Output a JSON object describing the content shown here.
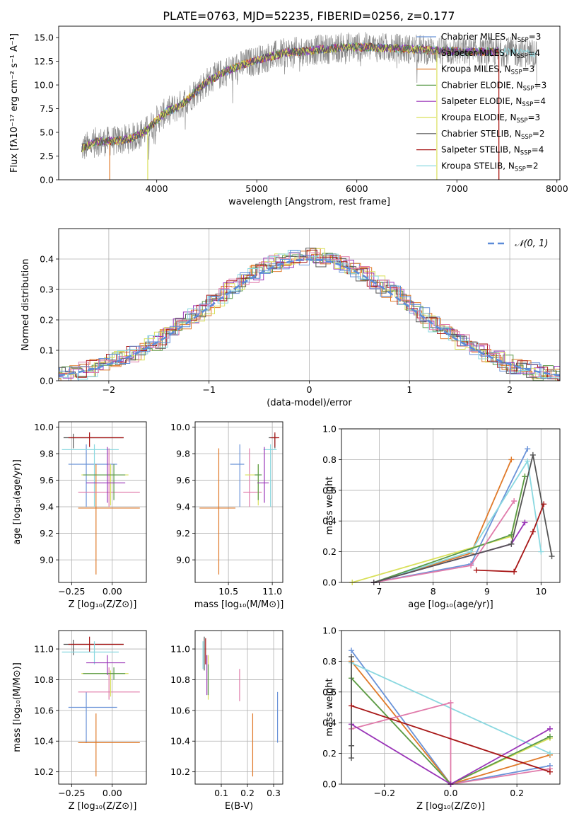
{
  "figure_title": "PLATE=0763, MJD=52235, FIBERID=0256, z=0.177",
  "colors": {
    "series": [
      "#6a93d8",
      "#e07a2a",
      "#e07a2a",
      "#5a9a4a",
      "#9a35b8",
      "#d9e05a",
      "#555555",
      "#a81818",
      "#8ad8e0"
    ],
    "grid": "#b0b0b0"
  },
  "chart_data": [
    {
      "id": "spectrum",
      "type": "line",
      "xlabel": "wavelength [Angstrom, rest frame]",
      "ylabel": "Flux [fλ10⁻¹⁷ erg cm⁻² s⁻¹ A⁻¹]",
      "xlim": [
        3020,
        8030
      ],
      "ylim": [
        0,
        16.2
      ],
      "xticks": [
        "4000",
        "5000",
        "6000",
        "7000",
        "8000"
      ],
      "yticks": [
        "0.0",
        "2.5",
        "5.0",
        "7.5",
        "10.0",
        "12.5",
        "15.0"
      ],
      "grid": false,
      "legend_placement": "upper-right",
      "series": [
        {
          "name": "Chabrier MILES, N_SSP=3",
          "color": "#6a93d8"
        },
        {
          "name": "Salpeter MILES, N_SSP=4",
          "color": "#8a8a8a"
        },
        {
          "name": "Kroupa MILES, N_SSP=3",
          "color": "#e07a2a"
        },
        {
          "name": "Chabrier ELODIE, N_SSP=3",
          "color": "#5a9a4a"
        },
        {
          "name": "Salpeter ELODIE, N_SSP=4",
          "color": "#9a35b8"
        },
        {
          "name": "Kroupa ELODIE, N_SSP=3",
          "color": "#d9e05a"
        },
        {
          "name": "Chabrier STELIB, N_SSP=2",
          "color": "#555555"
        },
        {
          "name": "Salpeter STELIB, N_SSP=4",
          "color": "#a81818"
        },
        {
          "name": "Kroupa STELIB, N_SSP=2",
          "color": "#8ad8e0"
        }
      ],
      "continuum": {
        "x": [
          3250,
          3400,
          3600,
          3750,
          3900,
          4000,
          4100,
          4200,
          4300,
          4400,
          4500,
          4700,
          4900,
          5100,
          5300,
          5500,
          5700,
          5900,
          6100,
          6300,
          6500,
          6700,
          6900,
          7100,
          7300,
          7500,
          7700,
          7800
        ],
        "y": [
          3.3,
          4.0,
          4.1,
          4.4,
          5.2,
          6.3,
          7.2,
          7.6,
          8.4,
          9.4,
          10.3,
          11.5,
          12.3,
          12.9,
          13.4,
          13.6,
          13.8,
          14.0,
          14.0,
          13.9,
          13.8,
          13.7,
          13.6,
          13.5,
          13.5,
          13.5,
          13.4,
          13.3
        ]
      }
    },
    {
      "id": "residuals",
      "type": "line",
      "xlabel": "(data-model)/error",
      "ylabel": "Normed distribution",
      "xlim": [
        -2.5,
        2.5
      ],
      "ylim": [
        0,
        0.5
      ],
      "xticks": [
        "−2",
        "−1",
        "0",
        "1",
        "2"
      ],
      "yticks": [
        "0.0",
        "0.1",
        "0.2",
        "0.3",
        "0.4"
      ],
      "grid": true,
      "legend_placement": "upper-right",
      "reference": {
        "name": "𝒩(0, 1)",
        "mean": 0,
        "sigma": 1,
        "color": "#5b8bd8"
      }
    },
    {
      "id": "age_vs_Z",
      "type": "scatter",
      "xlabel": "Z [log₁₀(Z/Z⊙)]",
      "ylabel": "age  [log₁₀(age/yr)]",
      "xlim": [
        -0.33,
        0.21
      ],
      "ylim": [
        8.83,
        10.04
      ],
      "xticks": [
        "−0.25",
        "0.00"
      ],
      "yticks": [
        "9.0",
        "9.2",
        "9.4",
        "9.6",
        "9.8",
        "10.0"
      ],
      "grid": true,
      "points": [
        {
          "x": -0.24,
          "y": 9.92,
          "xl": -0.3,
          "xh": 0.07,
          "yl": 9.84,
          "yh": 9.95,
          "c": "#555555"
        },
        {
          "x": -0.14,
          "y": 9.92,
          "xl": -0.27,
          "xh": 0.07,
          "yl": 9.85,
          "yh": 9.96,
          "c": "#a81818"
        },
        {
          "x": -0.16,
          "y": 9.72,
          "xl": -0.27,
          "xh": 0.03,
          "yl": 9.4,
          "yh": 9.87,
          "c": "#6a93d8"
        },
        {
          "x": -0.11,
          "y": 9.83,
          "xl": -0.31,
          "xh": 0.04,
          "yl": 9.4,
          "yh": 9.87,
          "c": "#8ad8e0"
        },
        {
          "x": -0.1,
          "y": 9.39,
          "xl": -0.21,
          "xh": 0.17,
          "yl": 8.89,
          "yh": 9.72,
          "c": "#e07a2a"
        },
        {
          "x": -0.02,
          "y": 9.51,
          "xl": -0.21,
          "xh": 0.17,
          "yl": 9.4,
          "yh": 9.84,
          "c": "#e07aaa"
        },
        {
          "x": -0.01,
          "y": 9.64,
          "xl": -0.19,
          "xh": 0.1,
          "yl": 9.41,
          "yh": 9.72,
          "c": "#d9e05a"
        },
        {
          "x": 0.01,
          "y": 9.64,
          "xl": -0.18,
          "xh": 0.08,
          "yl": 9.45,
          "yh": 9.72,
          "c": "#5a9a4a"
        },
        {
          "x": -0.03,
          "y": 9.58,
          "xl": -0.16,
          "xh": 0.08,
          "yl": 9.43,
          "yh": 9.85,
          "c": "#9a35b8"
        }
      ]
    },
    {
      "id": "age_vs_mass",
      "type": "scatter",
      "xlabel": "mass [log₁₀(M/M⊙)]",
      "xlim": [
        10.12,
        11.12
      ],
      "ylim": [
        8.83,
        10.04
      ],
      "xticks": [
        "10.5",
        "11.0"
      ],
      "yticks": [
        "9.0",
        "9.2",
        "9.4",
        "9.6",
        "9.8",
        "10.0"
      ],
      "grid": true,
      "points": [
        {
          "x": 11.03,
          "y": 9.92,
          "xl": 10.96,
          "xh": 11.06,
          "yl": 9.84,
          "yh": 9.95,
          "c": "#555555"
        },
        {
          "x": 11.03,
          "y": 9.92,
          "xl": 10.98,
          "xh": 11.08,
          "yl": 9.85,
          "yh": 9.96,
          "c": "#a81818"
        },
        {
          "x": 10.63,
          "y": 9.72,
          "xl": 10.52,
          "xh": 10.68,
          "yl": 9.4,
          "yh": 9.87,
          "c": "#6a93d8"
        },
        {
          "x": 10.98,
          "y": 9.83,
          "xl": 10.9,
          "xh": 11.05,
          "yl": 9.4,
          "yh": 9.87,
          "c": "#8ad8e0"
        },
        {
          "x": 10.39,
          "y": 9.39,
          "xl": 10.17,
          "xh": 10.58,
          "yl": 8.89,
          "yh": 9.84,
          "c": "#e07a2a"
        },
        {
          "x": 10.74,
          "y": 9.51,
          "xl": 10.67,
          "xh": 10.88,
          "yl": 9.4,
          "yh": 9.84,
          "c": "#e07aaa"
        },
        {
          "x": 10.84,
          "y": 9.64,
          "xl": 10.69,
          "xh": 10.86,
          "yl": 9.41,
          "yh": 9.72,
          "c": "#d9e05a"
        },
        {
          "x": 10.84,
          "y": 9.64,
          "xl": 10.8,
          "xh": 10.88,
          "yl": 9.45,
          "yh": 9.72,
          "c": "#5a9a4a"
        },
        {
          "x": 10.91,
          "y": 9.58,
          "xl": 10.83,
          "xh": 10.96,
          "yl": 9.43,
          "yh": 9.85,
          "c": "#9a35b8"
        }
      ]
    },
    {
      "id": "weight_vs_age",
      "type": "line",
      "xlabel": "age  [log₁₀(age/yr)]",
      "ylabel": "mass weight",
      "xlim": [
        6.3,
        10.35
      ],
      "ylim": [
        0,
        1.0
      ],
      "xticks": [
        "7",
        "8",
        "9",
        "10"
      ],
      "yticks": [
        "0.0",
        "0.2",
        "0.4",
        "0.6",
        "0.8",
        "1.0"
      ],
      "grid": true,
      "series": [
        {
          "c": "#6a93d8",
          "x": [
            6.9,
            8.7,
            9.75
          ],
          "y": [
            0.0,
            0.12,
            0.87
          ]
        },
        {
          "c": "#e07a2a",
          "x": [
            6.9,
            8.7,
            9.45
          ],
          "y": [
            0.0,
            0.19,
            0.8
          ]
        },
        {
          "c": "#8ad8e0",
          "x": [
            6.9,
            8.7,
            9.75,
            10.0
          ],
          "y": [
            0.0,
            0.2,
            0.79,
            0.2
          ]
        },
        {
          "c": "#d9e05a",
          "x": [
            6.5,
            9.45,
            9.7
          ],
          "y": [
            0.0,
            0.3,
            0.69
          ]
        },
        {
          "c": "#5a9a4a",
          "x": [
            6.9,
            9.45,
            9.7
          ],
          "y": [
            0.0,
            0.31,
            0.69
          ]
        },
        {
          "c": "#e07aaa",
          "x": [
            6.9,
            8.7,
            9.5
          ],
          "y": [
            0.0,
            0.11,
            0.53
          ]
        },
        {
          "c": "#9a35b8",
          "x": [
            6.9,
            9.45,
            9.7
          ],
          "y": [
            0.0,
            0.25,
            0.39
          ]
        },
        {
          "c": "#555555",
          "x": [
            6.9,
            9.45,
            9.85,
            10.2
          ],
          "y": [
            0.0,
            0.25,
            0.83,
            0.17
          ]
        },
        {
          "c": "#a81818",
          "x": [
            8.8,
            9.5,
            9.85,
            10.05
          ],
          "y": [
            0.08,
            0.07,
            0.33,
            0.51
          ]
        }
      ]
    },
    {
      "id": "mass_vs_Z",
      "type": "scatter",
      "xlabel": "Z [log₁₀(Z/Z⊙)]",
      "ylabel": "mass [log₁₀(M/M⊙)]",
      "xlim": [
        -0.33,
        0.21
      ],
      "ylim": [
        10.12,
        11.12
      ],
      "xticks": [
        "−0.25",
        "0.00"
      ],
      "yticks": [
        "10.2",
        "10.4",
        "10.6",
        "10.8",
        "11.0"
      ],
      "grid": true,
      "points": [
        {
          "x": -0.24,
          "y": 11.03,
          "xl": -0.3,
          "xh": 0.07,
          "yl": 10.96,
          "yh": 11.06,
          "c": "#555555"
        },
        {
          "x": -0.14,
          "y": 11.03,
          "xl": -0.27,
          "xh": 0.07,
          "yl": 10.98,
          "yh": 11.08,
          "c": "#a81818"
        },
        {
          "x": -0.16,
          "y": 10.62,
          "xl": -0.27,
          "xh": 0.03,
          "yl": 10.39,
          "yh": 10.72,
          "c": "#6a93d8"
        },
        {
          "x": -0.11,
          "y": 10.98,
          "xl": -0.31,
          "xh": 0.04,
          "yl": 10.9,
          "yh": 11.05,
          "c": "#8ad8e0"
        },
        {
          "x": -0.1,
          "y": 10.39,
          "xl": -0.21,
          "xh": 0.17,
          "yl": 10.17,
          "yh": 10.58,
          "c": "#e07a2a"
        },
        {
          "x": -0.02,
          "y": 10.72,
          "xl": -0.21,
          "xh": 0.17,
          "yl": 10.67,
          "yh": 10.88,
          "c": "#e07aaa"
        },
        {
          "x": -0.01,
          "y": 10.84,
          "xl": -0.19,
          "xh": 0.1,
          "yl": 10.69,
          "yh": 10.86,
          "c": "#d9e05a"
        },
        {
          "x": 0.01,
          "y": 10.84,
          "xl": -0.18,
          "xh": 0.08,
          "yl": 10.8,
          "yh": 10.88,
          "c": "#5a9a4a"
        },
        {
          "x": -0.03,
          "y": 10.91,
          "xl": -0.16,
          "xh": 0.08,
          "yl": 10.83,
          "yh": 10.96,
          "c": "#9a35b8"
        }
      ]
    },
    {
      "id": "mass_vs_ebv",
      "type": "scatter",
      "xlabel": "E(B-V)",
      "xlim": [
        0.0,
        0.335
      ],
      "ylim": [
        10.12,
        11.12
      ],
      "xticks": [
        "0.1",
        "0.2",
        "0.3"
      ],
      "yticks": [
        "10.2",
        "10.4",
        "10.6",
        "10.8",
        "11.0"
      ],
      "grid": true,
      "points": [
        {
          "x": 0.035,
          "y": 11.0,
          "yl": 10.86,
          "yh": 11.08,
          "c": "#555555"
        },
        {
          "x": 0.04,
          "y": 11.0,
          "yl": 10.9,
          "yh": 11.07,
          "c": "#a81818"
        },
        {
          "x": 0.03,
          "y": 10.95,
          "yl": 10.87,
          "yh": 11.05,
          "c": "#8ad8e0"
        },
        {
          "x": 0.045,
          "y": 10.85,
          "yl": 10.7,
          "yh": 10.96,
          "c": "#9a35b8"
        },
        {
          "x": 0.05,
          "y": 10.85,
          "yl": 10.67,
          "yh": 10.96,
          "c": "#d9e05a"
        },
        {
          "x": 0.05,
          "y": 10.8,
          "yl": 10.7,
          "yh": 10.9,
          "c": "#5a9a4a"
        },
        {
          "x": 0.17,
          "y": 10.77,
          "yl": 10.66,
          "yh": 10.87,
          "c": "#e07aaa"
        },
        {
          "x": 0.22,
          "y": 10.39,
          "yl": 10.17,
          "yh": 10.58,
          "c": "#e07a2a"
        },
        {
          "x": 0.315,
          "y": 10.55,
          "yl": 10.39,
          "yh": 10.72,
          "c": "#6a93d8"
        }
      ]
    },
    {
      "id": "weight_vs_Z",
      "type": "line",
      "xlabel": "Z [log₁₀(Z/Z⊙)]",
      "ylabel": "mass weight",
      "xlim": [
        -0.33,
        0.33
      ],
      "ylim": [
        0,
        1.0
      ],
      "xticks": [
        "−0.2",
        "0.0",
        "0.2"
      ],
      "yticks": [
        "0.0",
        "0.2",
        "0.4",
        "0.6",
        "0.8",
        "1.0"
      ],
      "grid": true,
      "series": [
        {
          "c": "#6a93d8",
          "x": [
            -0.3,
            0.0,
            0.3
          ],
          "y": [
            0.87,
            0.0,
            0.12
          ]
        },
        {
          "c": "#e07a2a",
          "x": [
            -0.3,
            0.0,
            0.3
          ],
          "y": [
            0.8,
            0.0,
            0.19
          ]
        },
        {
          "c": "#8ad8e0",
          "x": [
            -0.3,
            0.3
          ],
          "y": [
            0.79,
            0.2
          ]
        },
        {
          "c": "#d9e05a",
          "x": [
            -0.3,
            0.0,
            0.3
          ],
          "y": [
            0.69,
            0.0,
            0.3
          ]
        },
        {
          "c": "#5a9a4a",
          "x": [
            -0.3,
            0.0,
            0.3
          ],
          "y": [
            0.69,
            0.0,
            0.31
          ]
        },
        {
          "c": "#e07aaa",
          "x": [
            -0.3,
            0.0,
            0.0,
            0.3
          ],
          "y": [
            0.36,
            0.53,
            0.0,
            0.1
          ]
        },
        {
          "c": "#9a35b8",
          "x": [
            -0.3,
            0.0,
            0.3
          ],
          "y": [
            0.39,
            0.0,
            0.36
          ]
        },
        {
          "c": "#555555",
          "x": [
            -0.3,
            -0.3,
            -0.3
          ],
          "y": [
            0.17,
            0.25,
            0.83
          ]
        },
        {
          "c": "#a81818",
          "x": [
            -0.3,
            0.3
          ],
          "y": [
            0.51,
            0.08
          ]
        }
      ]
    }
  ]
}
